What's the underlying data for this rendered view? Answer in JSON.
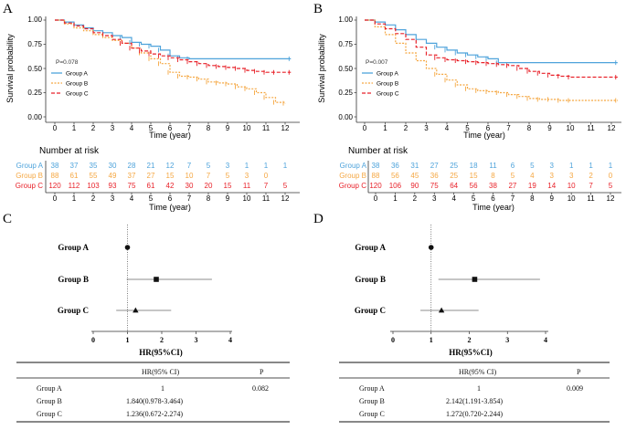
{
  "colors": {
    "a": "#4EA3DB",
    "b": "#F5A742",
    "c": "#E8222A",
    "axis": "#333333",
    "grid": "#555555"
  },
  "panels_km": [
    {
      "letter": "A",
      "pvalue": "P=0.078",
      "ylabel": "Survival probability",
      "xlabel": "Time (year)",
      "x_ticks": [
        "0",
        "1",
        "2",
        "3",
        "4",
        "5",
        "6",
        "7",
        "8",
        "9",
        "10",
        "11",
        "12"
      ],
      "y_ticks": [
        "0.00",
        "0.25",
        "0.50",
        "0.75",
        "1.00"
      ],
      "legend": [
        "Group A",
        "Group B",
        "Group C"
      ],
      "risk_title": "Number at risk",
      "risk_rows": [
        {
          "name": "Group A",
          "values": [
            "38",
            "37",
            "35",
            "30",
            "28",
            "21",
            "12",
            "7",
            "5",
            "3",
            "1",
            "1",
            "1"
          ]
        },
        {
          "name": "Group B",
          "values": [
            "88",
            "61",
            "55",
            "49",
            "37",
            "27",
            "15",
            "10",
            "7",
            "5",
            "3",
            "0",
            ""
          ]
        },
        {
          "name": "Group C",
          "values": [
            "120",
            "112",
            "103",
            "93",
            "75",
            "61",
            "42",
            "30",
            "20",
            "15",
            "11",
            "7",
            "5"
          ]
        }
      ],
      "risk_xlabel": "Time (year)",
      "risk_x_ticks": [
        "0",
        "1",
        "2",
        "3",
        "4",
        "5",
        "6",
        "7",
        "8",
        "9",
        "10",
        "11",
        "12"
      ]
    },
    {
      "letter": "B",
      "pvalue": "P=0.007",
      "ylabel": "Survival probability",
      "xlabel": "Time (year)",
      "x_ticks": [
        "0",
        "1",
        "2",
        "3",
        "4",
        "5",
        "6",
        "7",
        "8",
        "9",
        "10",
        "11",
        "12"
      ],
      "y_ticks": [
        "0.00",
        "0.25",
        "0.50",
        "0.75",
        "1.00"
      ],
      "legend": [
        "Group A",
        "Group B",
        "Group C"
      ],
      "risk_title": "Number at risk",
      "risk_rows": [
        {
          "name": "Group A",
          "values": [
            "38",
            "36",
            "31",
            "27",
            "25",
            "18",
            "11",
            "6",
            "5",
            "3",
            "1",
            "1",
            "1"
          ]
        },
        {
          "name": "Group B",
          "values": [
            "88",
            "56",
            "45",
            "36",
            "25",
            "15",
            "8",
            "5",
            "4",
            "3",
            "3",
            "2",
            "0"
          ]
        },
        {
          "name": "Group C",
          "values": [
            "120",
            "106",
            "90",
            "75",
            "64",
            "56",
            "38",
            "27",
            "19",
            "14",
            "10",
            "7",
            "5"
          ]
        }
      ],
      "risk_xlabel": "Time (year)",
      "risk_x_ticks": [
        "0",
        "1",
        "2",
        "3",
        "4",
        "5",
        "6",
        "7",
        "8",
        "9",
        "10",
        "11",
        "12"
      ]
    }
  ],
  "panels_forest": [
    {
      "letter": "C",
      "xlabel": "HR(95%CI)",
      "x_ticks": [
        "0",
        "1",
        "2",
        "3",
        "4"
      ],
      "table_header": [
        "HR(95% CI)",
        "P"
      ],
      "table_rows": [
        {
          "group": "Group A",
          "hr": "1",
          "p": "0.082"
        },
        {
          "group": "Group B",
          "hr": "1.840(0.978-3.464)",
          "p": ""
        },
        {
          "group": "Group C",
          "hr": "1.236(0.672-2.274)",
          "p": ""
        }
      ]
    },
    {
      "letter": "D",
      "xlabel": "HR(95%CI)",
      "x_ticks": [
        "0",
        "1",
        "2",
        "3",
        "4"
      ],
      "table_header": [
        "HR(95% CI)",
        "P"
      ],
      "table_rows": [
        {
          "group": "Group A",
          "hr": "1",
          "p": "0.009"
        },
        {
          "group": "Group B",
          "hr": "2.142(1.191-3.854)",
          "p": ""
        },
        {
          "group": "Group C",
          "hr": "1.272(0.720-2.244)",
          "p": ""
        }
      ]
    }
  ],
  "chart_data": [
    {
      "type": "line",
      "title": "A",
      "xlabel": "Time (year)",
      "ylabel": "Survival probability",
      "xlim": [
        0,
        12.5
      ],
      "ylim": [
        0,
        1
      ],
      "series": [
        {
          "name": "Group A",
          "x": [
            0,
            0.5,
            1,
            1.5,
            2,
            2.5,
            3,
            3.5,
            4,
            4.5,
            5,
            5.5,
            6,
            6.5,
            7,
            12.3
          ],
          "y": [
            1,
            0.98,
            0.95,
            0.92,
            0.89,
            0.87,
            0.84,
            0.82,
            0.77,
            0.75,
            0.73,
            0.69,
            0.63,
            0.61,
            0.6,
            0.6
          ]
        },
        {
          "name": "Group B",
          "x": [
            0,
            0.5,
            1,
            1.5,
            2,
            2.5,
            3,
            3.5,
            4,
            4.5,
            5,
            5.5,
            6,
            6.5,
            7,
            7.5,
            8,
            8.5,
            9,
            9.5,
            10,
            10.5,
            11,
            11.5,
            12
          ],
          "y": [
            1,
            0.96,
            0.92,
            0.89,
            0.85,
            0.82,
            0.79,
            0.76,
            0.71,
            0.66,
            0.6,
            0.55,
            0.46,
            0.42,
            0.41,
            0.39,
            0.36,
            0.35,
            0.34,
            0.31,
            0.29,
            0.25,
            0.2,
            0.15,
            0.14
          ]
        },
        {
          "name": "Group C",
          "x": [
            0,
            0.5,
            1,
            1.5,
            2,
            2.5,
            3,
            3.5,
            4,
            4.5,
            5,
            5.5,
            6,
            6.5,
            7,
            7.5,
            8,
            8.5,
            9,
            9.5,
            10,
            10.5,
            11,
            11.5,
            12.3
          ],
          "y": [
            1,
            0.97,
            0.94,
            0.91,
            0.87,
            0.84,
            0.8,
            0.76,
            0.71,
            0.68,
            0.65,
            0.63,
            0.61,
            0.59,
            0.57,
            0.55,
            0.53,
            0.52,
            0.51,
            0.5,
            0.48,
            0.47,
            0.46,
            0.46,
            0.46
          ]
        }
      ]
    },
    {
      "type": "line",
      "title": "B",
      "xlabel": "Time (year)",
      "ylabel": "Survival probability",
      "xlim": [
        0,
        12.5
      ],
      "ylim": [
        0,
        1
      ],
      "series": [
        {
          "name": "Group A",
          "x": [
            0,
            0.5,
            1,
            1.5,
            2,
            2.5,
            3,
            3.5,
            4,
            4.5,
            5,
            5.5,
            6,
            6.5,
            12.3
          ],
          "y": [
            1,
            0.98,
            0.95,
            0.9,
            0.85,
            0.8,
            0.76,
            0.72,
            0.69,
            0.66,
            0.64,
            0.62,
            0.6,
            0.56,
            0.56
          ]
        },
        {
          "name": "Group B",
          "x": [
            0,
            0.5,
            1,
            1.5,
            2,
            2.5,
            3,
            3.5,
            4,
            4.5,
            5,
            5.5,
            6,
            6.5,
            7,
            7.5,
            8,
            8.5,
            9,
            9.5,
            10,
            12.3
          ],
          "y": [
            1,
            0.93,
            0.85,
            0.76,
            0.66,
            0.58,
            0.5,
            0.44,
            0.38,
            0.33,
            0.29,
            0.27,
            0.26,
            0.25,
            0.23,
            0.21,
            0.19,
            0.18,
            0.18,
            0.17,
            0.17,
            0.17
          ]
        },
        {
          "name": "Group C",
          "x": [
            0,
            0.5,
            1,
            1.5,
            2,
            2.5,
            3,
            3.5,
            4,
            4.5,
            5,
            5.5,
            6,
            6.5,
            7,
            7.5,
            8,
            8.5,
            9,
            9.5,
            10,
            12.3
          ],
          "y": [
            1,
            0.96,
            0.91,
            0.86,
            0.8,
            0.72,
            0.64,
            0.61,
            0.59,
            0.58,
            0.57,
            0.56,
            0.55,
            0.54,
            0.53,
            0.5,
            0.47,
            0.45,
            0.43,
            0.42,
            0.41,
            0.41
          ]
        }
      ]
    },
    {
      "type": "scatter",
      "title": "C",
      "xlabel": "HR(95%CI)",
      "xlim": [
        0,
        4
      ],
      "reference_line": 1,
      "categories": [
        "Group A",
        "Group B",
        "Group C"
      ],
      "values": [
        1,
        1.84,
        1.236
      ],
      "lower": [
        1,
        0.978,
        0.672
      ],
      "upper": [
        1,
        3.464,
        2.274
      ]
    },
    {
      "type": "scatter",
      "title": "D",
      "xlabel": "HR(95%CI)",
      "xlim": [
        0,
        4
      ],
      "reference_line": 1,
      "categories": [
        "Group A",
        "Group B",
        "Group C"
      ],
      "values": [
        1,
        2.142,
        1.272
      ],
      "lower": [
        1,
        1.191,
        0.72
      ],
      "upper": [
        1,
        3.854,
        2.244
      ]
    }
  ]
}
